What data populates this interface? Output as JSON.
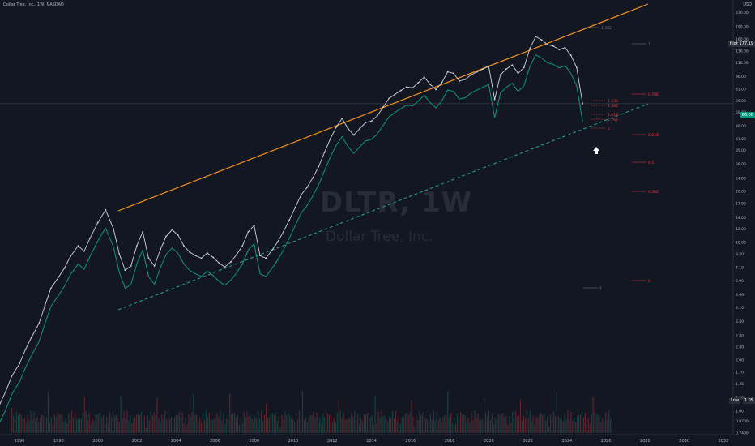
{
  "header": {
    "symbol": "Dollar Tree, Inc., 1W, NASDAQ",
    "currency": "USD"
  },
  "watermark": {
    "ticker": "DLTR, 1W",
    "name": "Dollar Tree, Inc."
  },
  "badges": {
    "high": "High",
    "high_val": "177.19",
    "last": "66.00",
    "low": "Low",
    "low_val": "1.05"
  },
  "colors": {
    "bg": "#131722",
    "trend_upper": "#f7931a",
    "trend_lower": "#26a69a",
    "stop_green": "#089981",
    "stop_red": "#f23645",
    "price": "#d1d4dc"
  },
  "chart_data": {
    "type": "line",
    "x_axis": {
      "ticks": [
        "1996",
        "1998",
        "2000",
        "2002",
        "2004",
        "2006",
        "2008",
        "2010",
        "2012",
        "2014",
        "2016",
        "2018",
        "2020",
        "2022",
        "2024",
        "2026",
        "2028",
        "2030",
        "2032"
      ],
      "range": [
        1995,
        2032.5
      ]
    },
    "y_axis": {
      "scale": "log",
      "ticks": [
        "230.00",
        "190.00",
        "160.00",
        "136.00",
        "116.00",
        "96.00",
        "81.00",
        "69.00",
        "59.00",
        "49.00",
        "41.00",
        "35.00",
        "29.00",
        "24.00",
        "20.00",
        "17.00",
        "14.00",
        "12.00",
        "10.00",
        "8.50",
        "7.10",
        "5.90",
        "4.90",
        "4.10",
        "3.40",
        "2.80",
        "2.40",
        "2.00",
        "1.70",
        "1.45",
        "1.20",
        "1.00",
        "0.8700",
        "0.7400"
      ],
      "range": [
        0.72,
        272
      ]
    },
    "series": [
      {
        "x": [
          1995.0,
          1995.3,
          1995.6,
          1996.0,
          1996.3,
          1996.6,
          1997.0,
          1997.3,
          1997.6,
          1998.0,
          1998.3,
          1998.6,
          1999.0,
          1999.3,
          1999.6,
          2000.0,
          2000.4,
          2000.8,
          2001.1,
          2001.4,
          2001.7,
          2002.0,
          2002.3,
          2002.6,
          2002.9,
          2003.2,
          2003.5,
          2003.8,
          2004.1,
          2004.4,
          2004.7,
          2005.0,
          2005.3,
          2005.6,
          2005.9,
          2006.2,
          2006.5,
          2006.8,
          2007.1,
          2007.4,
          2007.7,
          2008.0,
          2008.3,
          2008.6,
          2008.9,
          2009.2,
          2009.5,
          2009.8,
          2010.1,
          2010.4,
          2010.7,
          2011.0,
          2011.3,
          2011.6,
          2011.9,
          2012.2,
          2012.5,
          2012.8,
          2013.1,
          2013.4,
          2013.7,
          2014.0,
          2014.3,
          2014.6,
          2014.9,
          2015.2,
          2015.5,
          2015.8,
          2016.1,
          2016.4,
          2016.7,
          2017.0,
          2017.3,
          2017.6,
          2017.9,
          2018.2,
          2018.5,
          2018.8,
          2019.1,
          2019.4,
          2019.7,
          2020.0,
          2020.3,
          2020.6,
          2020.9,
          2021.2,
          2021.5,
          2021.8,
          2022.1,
          2022.4,
          2022.7,
          2023.0,
          2023.3,
          2023.6,
          2023.9,
          2024.2,
          2024.5,
          2024.8
        ],
        "values": [
          1.1,
          1.3,
          1.6,
          1.9,
          2.3,
          2.7,
          3.3,
          4.2,
          5.3,
          6.2,
          7.0,
          8.2,
          9.5,
          8.8,
          10.5,
          13.0,
          15.5,
          12.0,
          8.5,
          6.8,
          7.2,
          9.5,
          11.5,
          8.0,
          7.2,
          9.0,
          10.8,
          11.8,
          11.0,
          9.5,
          8.7,
          8.3,
          8.0,
          8.6,
          8.1,
          7.5,
          7.1,
          7.6,
          8.4,
          9.5,
          11.5,
          12.5,
          8.3,
          8.0,
          8.9,
          10.0,
          11.5,
          13.5,
          16.0,
          19.0,
          21.0,
          24.0,
          28.0,
          34.0,
          41.0,
          48.0,
          54.0,
          47.0,
          43.0,
          47.0,
          51.0,
          52.0,
          56.0,
          63.0,
          71.0,
          75.0,
          79.0,
          83.0,
          82.0,
          88.0,
          95.0,
          86.0,
          80.0,
          88.0,
          102.0,
          100.0,
          90.0,
          92.0,
          98.0,
          102.0,
          106.0,
          110.0,
          70.0,
          98.0,
          106.0,
          112.0,
          100.0,
          108.0,
          140.0,
          165.0,
          158.0,
          148.0,
          145.0,
          138.0,
          142.0,
          128.0,
          108.0,
          66.0
        ]
      }
    ],
    "annotations": {
      "fib_levels": [
        "1.382",
        "1",
        "0.786",
        "1.236",
        "1.382",
        "1.618",
        "1.764",
        "2",
        "0.618",
        "0.5",
        "0.382",
        "0",
        "1"
      ],
      "stop_label_level": "0"
    }
  }
}
